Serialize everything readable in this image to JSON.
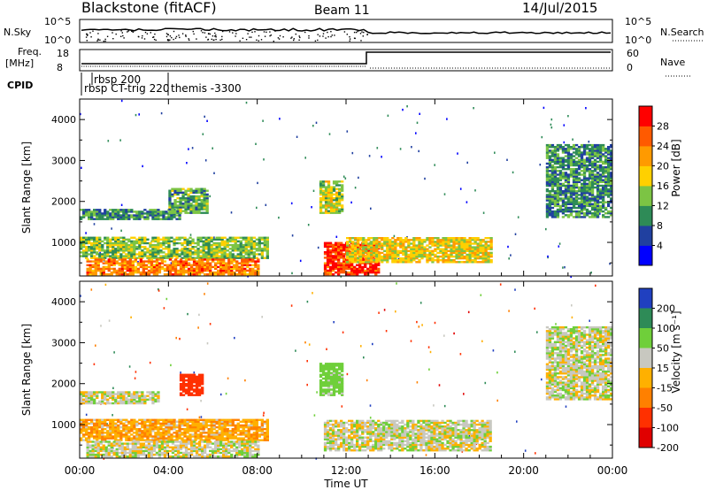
{
  "header": {
    "station": "Blackstone (fitACF)",
    "beam": "Beam 11",
    "date": "14/Jul/2015"
  },
  "top_panel": {
    "left_label": "N.Sky",
    "left_ticks": [
      "10^5",
      "10^0"
    ],
    "right_label": "N.Search",
    "right_ticks": [
      "10^5",
      "10^0"
    ]
  },
  "freq_panel": {
    "left_label_line1": "Freq.",
    "left_label_line2": "[MHz]",
    "left_ticks": [
      "18",
      "8"
    ],
    "right_label": "Nave",
    "right_ticks": [
      "60",
      "0"
    ]
  },
  "cpid": {
    "label": "CPID",
    "entries": [
      "rbsp 200",
      "rbsp CT-trig 220",
      "themis -3300"
    ]
  },
  "power_panel": {
    "ylabel": "Slant Range [km]",
    "colorbar_label": "Power [dB]",
    "colorbar_ticks": [
      "28",
      "24",
      "20",
      "16",
      "12",
      "8",
      "4"
    ],
    "colors": [
      "#0000ff",
      "#2040a0",
      "#2e8b57",
      "#7cc444",
      "#ffd000",
      "#ff9a00",
      "#ff5a00",
      "#ff0000"
    ]
  },
  "velocity_panel": {
    "ylabel": "Slant Range [km]",
    "colorbar_label": "Velocity [m s⁻¹]",
    "colorbar_ticks": [
      "200",
      "100",
      "50",
      "15",
      "-15",
      "-50",
      "-100",
      "-200"
    ],
    "colors": [
      "#2040c0",
      "#2e8b57",
      "#6fcf3a",
      "#c8c8c0",
      "#ffb000",
      "#ff8000",
      "#ff3000",
      "#e00000"
    ]
  },
  "x_axis": {
    "label": "Time UT",
    "ticks": [
      "00:00",
      "04:00",
      "08:00",
      "12:00",
      "16:00",
      "20:00",
      "00:00"
    ]
  },
  "chart_data": [
    {
      "type": "heatmap",
      "title": "Power",
      "xlabel": "Time UT",
      "ylabel": "Slant Range [km]",
      "xlim": [
        0,
        24
      ],
      "ylim": [
        180,
        4500
      ],
      "yticks": [
        1000,
        2000,
        3000,
        4000
      ],
      "colorbar_label": "Power [dB]",
      "colorbar_range": [
        0,
        32
      ],
      "regions": [
        {
          "t0": 0.0,
          "t1": 4.5,
          "r0": 1550,
          "r1": 1800,
          "value": 10
        },
        {
          "t0": 4.0,
          "t1": 5.7,
          "r0": 1700,
          "r1": 2300,
          "value": 12
        },
        {
          "t0": 0.0,
          "t1": 8.5,
          "r0": 600,
          "r1": 1100,
          "value": 14
        },
        {
          "t0": 0.3,
          "t1": 8.0,
          "r0": 200,
          "r1": 600,
          "value": 24
        },
        {
          "t0": 10.8,
          "t1": 11.8,
          "r0": 1700,
          "r1": 2500,
          "value": 16
        },
        {
          "t0": 11.0,
          "t1": 13.5,
          "r0": 200,
          "r1": 1000,
          "value": 28
        },
        {
          "t0": 12.0,
          "t1": 18.5,
          "r0": 500,
          "r1": 1100,
          "value": 18
        },
        {
          "t0": 21.0,
          "t1": 24.0,
          "r0": 1600,
          "r1": 3400,
          "value": 10
        }
      ]
    },
    {
      "type": "heatmap",
      "title": "Velocity",
      "xlabel": "Time UT",
      "ylabel": "Slant Range [km]",
      "xlim": [
        0,
        24
      ],
      "ylim": [
        180,
        4500
      ],
      "yticks": [
        1000,
        2000,
        3000,
        4000
      ],
      "colorbar_label": "Velocity [m s⁻¹]",
      "colorbar_range": [
        -250,
        250
      ],
      "regions": [
        {
          "t0": 0.0,
          "t1": 3.5,
          "r0": 1500,
          "r1": 1800,
          "value": 0
        },
        {
          "t0": 4.5,
          "t1": 5.5,
          "r0": 1700,
          "r1": 2200,
          "value": -150
        },
        {
          "t0": 0.0,
          "t1": 8.5,
          "r0": 600,
          "r1": 1100,
          "value": -40
        },
        {
          "t0": 0.3,
          "t1": 8.0,
          "r0": 200,
          "r1": 600,
          "value": 0
        },
        {
          "t0": 10.8,
          "t1": 11.8,
          "r0": 1700,
          "r1": 2500,
          "value": 40
        },
        {
          "t0": 11.0,
          "t1": 18.5,
          "r0": 350,
          "r1": 1100,
          "value": 0
        },
        {
          "t0": 21.0,
          "t1": 24.0,
          "r0": 1600,
          "r1": 3400,
          "value": 0
        }
      ]
    }
  ]
}
